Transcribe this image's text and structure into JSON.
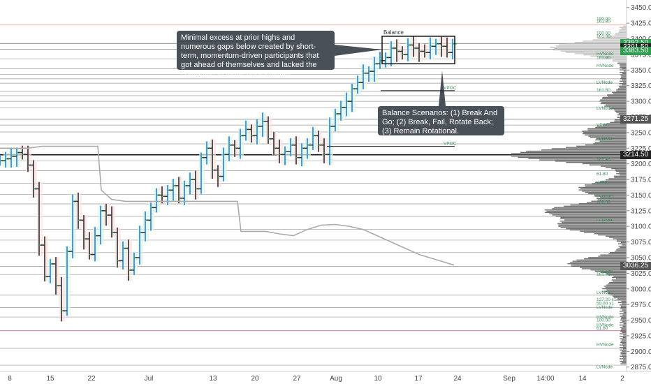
{
  "chart_data": {
    "type": "line",
    "title": "",
    "instrument_note": "",
    "y_axis": {
      "min": 2868,
      "max": 3462,
      "ticks": [
        3450.0,
        3425.0,
        3400.0,
        3375.0,
        3350.0,
        3325.0,
        3300.0,
        3275.0,
        3250.0,
        3225.0,
        3200.0,
        3175.0,
        3150.0,
        3125.0,
        3100.0,
        3075.0,
        3050.0,
        3025.0,
        3000.0,
        2975.0,
        2950.0,
        2925.0,
        2900.0,
        2875.0
      ]
    },
    "x_axis": {
      "ticks": [
        "8",
        "15",
        "22",
        "Jul",
        "13",
        "20",
        "27",
        "Aug",
        "10",
        "17",
        "24",
        "Sep",
        "14:00",
        "14",
        "2"
      ]
    },
    "price_tags": [
      {
        "value": "3392.50",
        "price": 3392.5,
        "color": "#2e9e4f"
      },
      {
        "value": "3391.50",
        "price": 3386.5,
        "color": "#222222"
      },
      {
        "value": "3383.50",
        "price": 3380.5,
        "color": "#2e9e4f"
      },
      {
        "value": "3271.25",
        "price": 3271.25,
        "color": "#555555"
      },
      {
        "value": "3214.50",
        "price": 3214.5,
        "color": "#222222"
      },
      {
        "value": "3036.25",
        "price": 3036.25,
        "color": "#555555"
      }
    ],
    "horizontal_levels": [
      {
        "price": 3422,
        "color": "#f08060"
      },
      {
        "price": 3392.5,
        "color": "#666666"
      },
      {
        "price": 3383.5,
        "color": "#666666"
      },
      {
        "price": 3368,
        "color": "#999999"
      },
      {
        "price": 3352,
        "color": "#999999"
      },
      {
        "price": 3343,
        "color": "#999999"
      },
      {
        "price": 3336,
        "color": "#999999"
      },
      {
        "price": 3329,
        "color": "#999999"
      },
      {
        "price": 3316,
        "color": "#999999"
      },
      {
        "price": 3309,
        "color": "#999999"
      },
      {
        "price": 3300,
        "color": "#999999"
      },
      {
        "price": 3290,
        "color": "#999999"
      },
      {
        "price": 3271.25,
        "color": "#777777"
      },
      {
        "price": 3262,
        "color": "#999999"
      },
      {
        "price": 3251,
        "color": "#999999"
      },
      {
        "price": 3232,
        "color": "#999999"
      },
      {
        "price": 3214.5,
        "color": "#111111"
      },
      {
        "price": 3205,
        "color": "#999999"
      },
      {
        "price": 3189,
        "color": "#999999"
      },
      {
        "price": 3169,
        "color": "#999999"
      },
      {
        "price": 3151,
        "color": "#999999"
      },
      {
        "price": 3136,
        "color": "#999999"
      },
      {
        "price": 3116,
        "color": "#999999"
      },
      {
        "price": 3095,
        "color": "#999999"
      },
      {
        "price": 3078,
        "color": "#999999"
      },
      {
        "price": 3058,
        "color": "#999999"
      },
      {
        "price": 3036.25,
        "color": "#777777"
      },
      {
        "price": 3023,
        "color": "#999999"
      },
      {
        "price": 2990,
        "color": "#999999"
      },
      {
        "price": 2970,
        "color": "#999999"
      },
      {
        "price": 2955,
        "color": "#999999"
      },
      {
        "price": 2933,
        "color": "#c04080"
      },
      {
        "price": 2905,
        "color": "#999999"
      },
      {
        "price": 2878,
        "color": "#999999"
      }
    ],
    "level_labels": [
      {
        "text": "100.00",
        "price": 3432
      },
      {
        "text": "161.80",
        "price": 3428
      },
      {
        "text": "100.00",
        "price": 3409
      },
      {
        "text": "161.80",
        "price": 3404
      },
      {
        "text": "HVNode",
        "price": 3376
      },
      {
        "text": "161.80",
        "price": 3370
      },
      {
        "text": "HVNode",
        "price": 3357
      },
      {
        "text": "LVNode",
        "price": 3330
      },
      {
        "text": "161.80",
        "price": 3318
      },
      {
        "text": "LVNode",
        "price": 3289
      },
      {
        "text": "VPOC",
        "price": 3262
      },
      {
        "text": "LVNode",
        "price": 3240
      },
      {
        "text": "161.80",
        "price": 3207
      },
      {
        "text": "61.80",
        "price": 3184
      },
      {
        "text": "VPOC",
        "price": 3170
      },
      {
        "text": "LVNode",
        "price": 3148
      },
      {
        "text": "100.00",
        "price": 3139
      },
      {
        "text": "LVNode",
        "price": 3110
      },
      {
        "text": "HVNode",
        "price": 3028
      },
      {
        "text": "161.80",
        "price": 3023
      },
      {
        "text": "LVNode",
        "price": 2994
      },
      {
        "text": "127.20 x1",
        "price": 2983
      },
      {
        "text": "50.00 x1",
        "price": 2977
      },
      {
        "text": "LVNode",
        "price": 2971
      },
      {
        "text": "HVNode",
        "price": 2955
      },
      {
        "text": "100.00",
        "price": 2950
      },
      {
        "text": "HVNode",
        "price": 2942
      },
      {
        "text": "61.80",
        "price": 2937
      },
      {
        "text": "HVNode",
        "price": 2911
      },
      {
        "text": "LVNode",
        "price": 2875
      }
    ],
    "annotations": {
      "callout_1": "Minimal excess at prior highs and numerous gaps below created by short-term, momentum-driven participants that got ahead of themselves and lacked the conviction to move prices higher.",
      "callout_2": "Balance Scenarios: (1) Break And Go; (2) Break, Fail, Rotate Back; (3) Remain Rotational.",
      "balance_label": "Balance",
      "vpoc_label_upper": "VPOC",
      "vpoc_label_lower": "VPOC"
    },
    "series": [
      {
        "kind": "price_path",
        "x": [
          0,
          8,
          16,
          24,
          32,
          40,
          48,
          56,
          64,
          72,
          80,
          88,
          96,
          104,
          112,
          120,
          128,
          136,
          144,
          152,
          160,
          168,
          176,
          184,
          192,
          200,
          208,
          216,
          224,
          232,
          240,
          248,
          256,
          264,
          272,
          280,
          288,
          296,
          304,
          312,
          320,
          328,
          336,
          344,
          352,
          360,
          368,
          376,
          384,
          392,
          400,
          408,
          416,
          424,
          432,
          440,
          448,
          456,
          464,
          472,
          480,
          488,
          496,
          504,
          512,
          520,
          528,
          536,
          544,
          552,
          560,
          568,
          576,
          584,
          592,
          600,
          608,
          616,
          624,
          632,
          640,
          648
        ],
        "y": [
          3205,
          3208,
          3212,
          3218,
          3215,
          3198,
          3160,
          3070,
          3020,
          3040,
          3005,
          2965,
          3060,
          3140,
          3110,
          3080,
          3055,
          3085,
          3125,
          3118,
          3090,
          3045,
          3065,
          3030,
          3050,
          3090,
          3110,
          3130,
          3150,
          3148,
          3158,
          3165,
          3145,
          3165,
          3175,
          3160,
          3210,
          3225,
          3190,
          3180,
          3215,
          3230,
          3225,
          3245,
          3255,
          3245,
          3260,
          3268,
          3240,
          3225,
          3215,
          3220,
          3230,
          3210,
          3225,
          3230,
          3245,
          3230,
          3215,
          3260,
          3280,
          3290,
          3300,
          3320,
          3330,
          3345,
          3348,
          3360,
          3365,
          3370,
          3385,
          3380,
          3375,
          3390,
          3385,
          3380,
          3378,
          3388,
          3392,
          3388,
          3378,
          3392
        ]
      },
      {
        "kind": "vwap_line",
        "x": [
          0,
          40,
          60,
          70,
          80,
          100,
          120,
          140,
          145,
          160,
          180,
          210,
          230,
          250,
          270,
          290,
          300,
          320,
          340,
          345,
          360,
          380,
          400,
          420,
          440,
          460,
          480,
          500,
          520,
          560,
          600,
          650
        ],
        "y": [
          3225,
          3225,
          3228,
          3228,
          3228,
          3228,
          3228,
          3228,
          3158,
          3143,
          3140,
          3140,
          3140,
          3140,
          3140,
          3140,
          3140,
          3140,
          3140,
          3092,
          3092,
          3092,
          3088,
          3085,
          3095,
          3102,
          3103,
          3100,
          3095,
          3075,
          3055,
          3038
        ]
      }
    ]
  }
}
